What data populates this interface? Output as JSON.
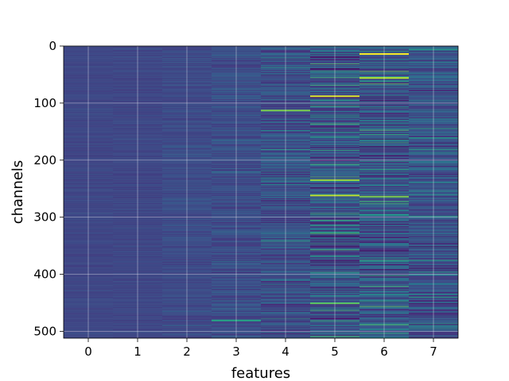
{
  "chart_data": {
    "type": "heatmap",
    "title": "",
    "xlabel": "features",
    "ylabel": "channels",
    "x_categories": [
      "0",
      "1",
      "2",
      "3",
      "4",
      "5",
      "6",
      "7"
    ],
    "y_ticks": [
      "0",
      "100",
      "200",
      "300",
      "400",
      "500"
    ],
    "y_tick_values": [
      0,
      100,
      200,
      300,
      400,
      500
    ],
    "ylim": [
      512,
      0
    ],
    "rows": 512,
    "colormap": "viridis",
    "grid": true,
    "column_variability": [
      0.06,
      0.07,
      0.1,
      0.18,
      0.32,
      0.48,
      0.52,
      0.36
    ],
    "column_baseline": [
      0.22,
      0.22,
      0.23,
      0.24,
      0.25,
      0.26,
      0.27,
      0.26
    ],
    "highlights": [
      {
        "feature": 6,
        "channel": 14,
        "value": 1.0
      },
      {
        "feature": 6,
        "channel": 56,
        "value": 0.9
      },
      {
        "feature": 5,
        "channel": 88,
        "value": 0.95
      },
      {
        "feature": 4,
        "channel": 113,
        "value": 0.8
      },
      {
        "feature": 5,
        "channel": 235,
        "value": 0.85
      },
      {
        "feature": 5,
        "channel": 262,
        "value": 0.9
      },
      {
        "feature": 6,
        "channel": 264,
        "value": 0.8
      },
      {
        "feature": 5,
        "channel": 451,
        "value": 0.75
      },
      {
        "feature": 3,
        "channel": 481,
        "value": 0.6
      }
    ]
  }
}
